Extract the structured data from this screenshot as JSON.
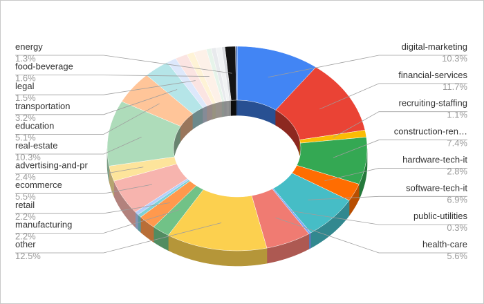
{
  "chart_data": {
    "type": "pie",
    "variant": "3d-donut",
    "title": "",
    "label_position": "outside with leader lines",
    "slices": [
      {
        "name": "digital-marketing",
        "value": 10.3,
        "label": "10.3%",
        "color": "#4285f4"
      },
      {
        "name": "financial-services",
        "value": 11.7,
        "label": "11.7%",
        "color": "#ea4335"
      },
      {
        "name": "recruiting-staffing",
        "value": 1.1,
        "label": "1.1%",
        "color": "#fbbc04"
      },
      {
        "name": "construction-ren…",
        "value": 7.4,
        "label": "7.4%",
        "color": "#34a853"
      },
      {
        "name": "hardware-tech-it",
        "value": 2.8,
        "label": "2.8%",
        "color": "#ff6d01"
      },
      {
        "name": "software-tech-it",
        "value": 6.9,
        "label": "6.9%",
        "color": "#46bdc6"
      },
      {
        "name": "public-utilities",
        "value": 0.3,
        "label": "0.3%",
        "color": "#7baaf7"
      },
      {
        "name": "health-care",
        "value": 5.6,
        "label": "5.6%",
        "color": "#f07b72"
      },
      {
        "name": "other",
        "value": 12.5,
        "label": "12.5%",
        "color": "#fcd04f"
      },
      {
        "name": "manufacturing",
        "value": 2.2,
        "label": "2.2%",
        "color": "#71c287"
      },
      {
        "name": "retail",
        "value": 2.2,
        "label": "2.2%",
        "color": "#ff994d"
      },
      {
        "name": "",
        "value": 0.5,
        "label": "",
        "color": "#7ed1d7"
      },
      {
        "name": "",
        "value": 0.5,
        "label": "",
        "color": "#b3cefb"
      },
      {
        "name": "ecommerce",
        "value": 5.5,
        "label": "5.5%",
        "color": "#f7b4ae"
      },
      {
        "name": "advertising-and-pr",
        "value": 2.4,
        "label": "2.4%",
        "color": "#fde49b"
      },
      {
        "name": "real-estate",
        "value": 10.3,
        "label": "10.3%",
        "color": "#aedcba"
      },
      {
        "name": "education",
        "value": 5.1,
        "label": "5.1%",
        "color": "#ffc599"
      },
      {
        "name": "transportation",
        "value": 3.2,
        "label": "3.2%",
        "color": "#b5e5e8"
      },
      {
        "name": "",
        "value": 1.2,
        "label": "",
        "color": "#dde8fb"
      },
      {
        "name": "legal",
        "value": 1.5,
        "label": "1.5%",
        "color": "#fbe4e2"
      },
      {
        "name": "",
        "value": 0.9,
        "label": "",
        "color": "#fef3d6"
      },
      {
        "name": "food-beverage",
        "value": 1.6,
        "label": "1.6%",
        "color": "#fdf1e8"
      },
      {
        "name": "",
        "value": 0.6,
        "label": "",
        "color": "#e6f4ea"
      },
      {
        "name": "",
        "value": 0.6,
        "label": "",
        "color": "#e8eaed"
      },
      {
        "name": "",
        "value": 0.7,
        "label": "",
        "color": "#f1f3f4"
      },
      {
        "name": "",
        "value": 0.4,
        "label": "",
        "color": "#dadce0"
      },
      {
        "name": "energy",
        "value": 1.3,
        "label": "1.3%",
        "color": "#141414"
      },
      {
        "name": "",
        "value": 0.2,
        "label": "",
        "color": "#4a6fb5"
      }
    ]
  }
}
